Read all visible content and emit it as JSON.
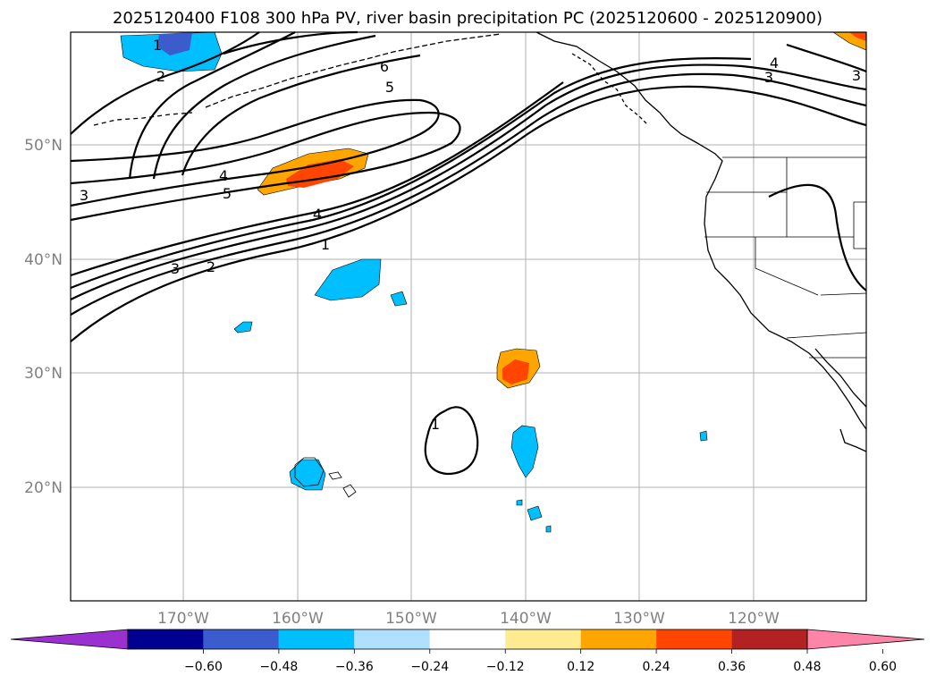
{
  "title": "2025120400 F108 300 hPa PV, river basin precipitation PC (2025120600 - 2025120900)",
  "lat_ticks": [
    "50°N",
    "40°N",
    "30°N",
    "20°N"
  ],
  "lon_ticks": [
    "170°W",
    "160°W",
    "150°W",
    "140°W",
    "130°W",
    "120°W"
  ],
  "colorbar": {
    "ticks": [
      "−0.60",
      "−0.48",
      "−0.36",
      "−0.24",
      "−0.12",
      "0.12",
      "0.24",
      "0.36",
      "0.48",
      "0.60"
    ],
    "colors": [
      "#9b30d0",
      "#000090",
      "#3a5ccc",
      "#00bfff",
      "#b0e0ff",
      "#ffffff",
      "#ffec90",
      "#ffa500",
      "#ff4500",
      "#b22222",
      "#ff85a8"
    ]
  },
  "contour_labels": [
    "1",
    "2",
    "3",
    "4",
    "5",
    "6"
  ],
  "colors": {
    "negative_fill": "#00bfff",
    "negative_strong": "#3a5ccc",
    "positive_fill": "#ffa500",
    "positive_strong": "#ff4500"
  }
}
